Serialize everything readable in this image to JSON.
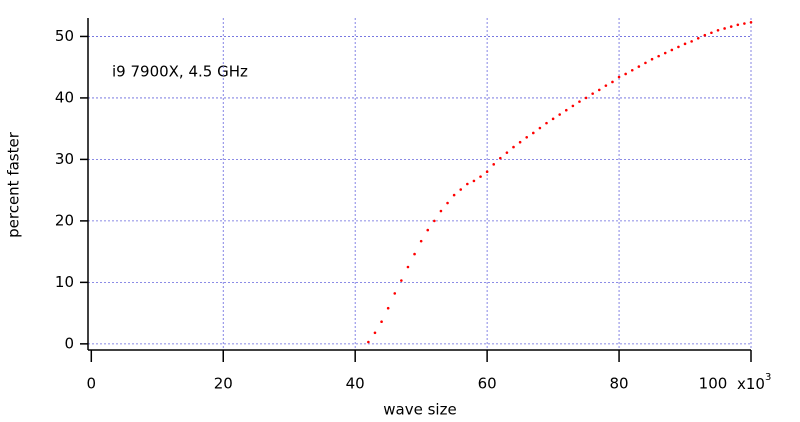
{
  "chart_data": {
    "type": "scatter",
    "annotation": "i9 7900X, 4.5 GHz",
    "x_label": "wave size",
    "y_label": "percent faster",
    "x_multiplier": {
      "base": "x10",
      "exponent": "3"
    },
    "series": [
      {
        "color": "#ff0000",
        "x": [
          42,
          43,
          44,
          45,
          46,
          47,
          48,
          49,
          50,
          51,
          52,
          53,
          54,
          55,
          56,
          57,
          58,
          59,
          60,
          61,
          62,
          63,
          64,
          65,
          66,
          67,
          68,
          69,
          70,
          71,
          72,
          73,
          74,
          75,
          76,
          77,
          78,
          79,
          80,
          81,
          82,
          83,
          84,
          85,
          86,
          87,
          88,
          89,
          90,
          91,
          92,
          93,
          94,
          95,
          96,
          97,
          98,
          99,
          100
        ],
        "values": [
          0.3,
          1.8,
          3.6,
          5.8,
          8.2,
          10.3,
          12.5,
          14.6,
          16.7,
          18.5,
          20,
          21.6,
          22.9,
          24.2,
          25.1,
          26,
          26.5,
          27.2,
          28,
          29.2,
          30.2,
          31.1,
          32,
          32.8,
          33.6,
          34.3,
          35.1,
          35.9,
          36.6,
          37.3,
          38,
          38.7,
          39.4,
          40,
          40.7,
          41.3,
          42,
          42.6,
          43.4,
          43.9,
          44.5,
          45.1,
          45.7,
          46.3,
          46.8,
          47.3,
          47.8,
          48.3,
          48.8,
          49.2,
          49.7,
          50.2,
          50.6,
          51,
          51.3,
          51.6,
          51.9,
          52.1,
          52.3
        ]
      }
    ],
    "xlim": [
      -0.5,
      100
    ],
    "ylim": [
      -1,
      53
    ],
    "xticks": [
      0,
      20,
      40,
      60,
      80,
      100
    ],
    "yticks": [
      0,
      10,
      20,
      30,
      40,
      50
    ],
    "grid": true,
    "grid_color": "#6666dd"
  }
}
